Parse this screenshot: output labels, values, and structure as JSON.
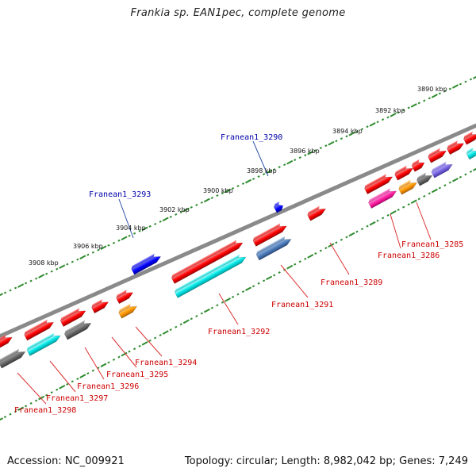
{
  "title": "Frankia sp. EAN1pec, complete genome",
  "footer": {
    "accession": "Accession: NC_009921",
    "summary": "Topology: circular; Length: 8,982,042 bp; Genes: 7,249"
  },
  "colors": {
    "backbone": "#8a8a8a",
    "scale_dots": "#2e8b2e",
    "label_top": "#0000aa",
    "label_bottom": "#cc0000",
    "callout_top": "#3355aa",
    "callout_bottom": "#dd3333"
  },
  "scale_labels": [
    "3890 kbp",
    "3892 kbp",
    "3894 kbp",
    "3896 kbp",
    "3898 kbp",
    "3900 kbp",
    "3902 kbp",
    "3904 kbp",
    "3906 kbp",
    "3908 kbp"
  ],
  "gene_labels_top": [
    "Franean1_3290",
    "Franean1_3293"
  ],
  "gene_labels_bottom": [
    "Franean1_3285",
    "Franean1_3286",
    "Franean1_3289",
    "Franean1_3291",
    "Franean1_3292",
    "Franean1_3294",
    "Franean1_3295",
    "Franean1_3296",
    "Franean1_3297",
    "Franean1_3298"
  ]
}
